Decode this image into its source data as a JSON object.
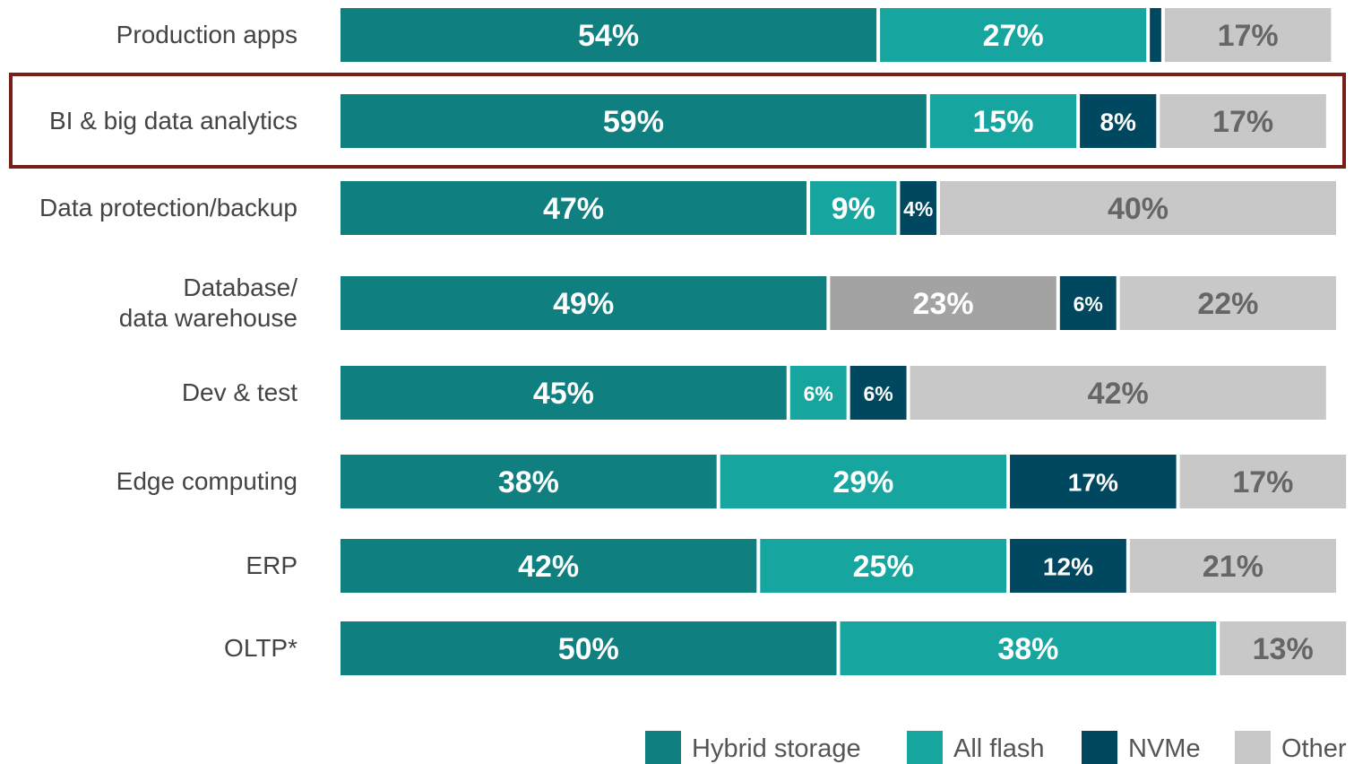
{
  "chart_data": {
    "type": "stacked-bar-horizontal",
    "categories": [
      "Production apps",
      "BI & big data analytics",
      "Data protection/backup",
      "Database/\ndata warehouse",
      "Dev & test",
      "Edge computing",
      "ERP",
      "OLTP*"
    ],
    "xlim": [
      0,
      100
    ],
    "series": [
      {
        "name": "Hybrid storage",
        "color": "#0f7f80",
        "label_color": "#ffffff",
        "values": [
          54,
          59,
          47,
          49,
          45,
          38,
          42,
          50
        ],
        "value_labels": [
          "54%",
          "59%",
          "47%",
          "49%",
          "45%",
          "38%",
          "42%",
          "50%"
        ]
      },
      {
        "name": "All flash",
        "color": "#17a69f",
        "label_color": "#ffffff",
        "colors": [
          "#17a69f",
          "#17a69f",
          "#17a69f",
          "#a3a3a3",
          "#17a69f",
          "#17a69f",
          "#17a69f",
          "#17a69f"
        ],
        "values": [
          27,
          15,
          9,
          23,
          6,
          29,
          25,
          38
        ],
        "value_labels": [
          "27%",
          "15%",
          "9%",
          "23%",
          "6%",
          "29%",
          "25%",
          "38%"
        ]
      },
      {
        "name": "NVMe",
        "color": "#004760",
        "label_color": "#ffffff",
        "values": [
          1.5,
          8,
          4,
          6,
          6,
          17,
          12,
          null
        ],
        "value_labels": [
          null,
          "8%",
          "4%",
          "6%",
          "6%",
          "17%",
          "12%",
          null
        ]
      },
      {
        "name": "Other",
        "color": "#c8c8c8",
        "label_color": "#666666",
        "values": [
          17,
          17,
          40,
          22,
          42,
          17,
          21,
          13
        ],
        "value_labels": [
          "17%",
          "17%",
          "40%",
          "22%",
          "42%",
          "17%",
          "21%",
          "13%"
        ]
      }
    ]
  }
}
